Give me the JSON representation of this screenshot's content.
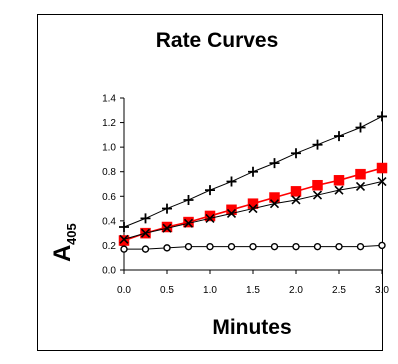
{
  "chart_data": {
    "type": "line",
    "title": "Rate Curves",
    "xlabel": "Minutes",
    "ylabel_main": "A",
    "ylabel_sub": "405",
    "xlim": [
      0,
      3
    ],
    "ylim": [
      0,
      1.4
    ],
    "xticks": [
      "0.0",
      "0.5",
      "1.0",
      "1.5",
      "2.0",
      "2.5",
      "3.0"
    ],
    "yticks": [
      "0.0",
      "0.2",
      "0.4",
      "0.6",
      "0.8",
      "1.0",
      "1.2",
      "1.4"
    ],
    "grid": false,
    "legend": "none",
    "x": [
      0,
      0.25,
      0.5,
      0.75,
      1.0,
      1.25,
      1.5,
      1.75,
      2.0,
      2.25,
      2.5,
      2.75,
      3.0
    ],
    "series": [
      {
        "marker": "plus",
        "color": "#000000",
        "values": [
          0.35,
          0.42,
          0.5,
          0.57,
          0.65,
          0.72,
          0.8,
          0.87,
          0.95,
          1.02,
          1.09,
          1.16,
          1.25
        ]
      },
      {
        "marker": "square",
        "color": "#ff0000",
        "values": [
          0.24,
          0.3,
          0.35,
          0.39,
          0.44,
          0.49,
          0.54,
          0.59,
          0.64,
          0.69,
          0.73,
          0.78,
          0.83
        ]
      },
      {
        "marker": "x",
        "color": "#000000",
        "values": [
          0.25,
          0.3,
          0.34,
          0.38,
          0.42,
          0.46,
          0.5,
          0.54,
          0.57,
          0.61,
          0.65,
          0.68,
          0.72
        ]
      },
      {
        "marker": "circle",
        "color": "#000000",
        "values": [
          0.17,
          0.17,
          0.18,
          0.19,
          0.19,
          0.19,
          0.19,
          0.19,
          0.19,
          0.19,
          0.19,
          0.19,
          0.2
        ]
      }
    ]
  }
}
